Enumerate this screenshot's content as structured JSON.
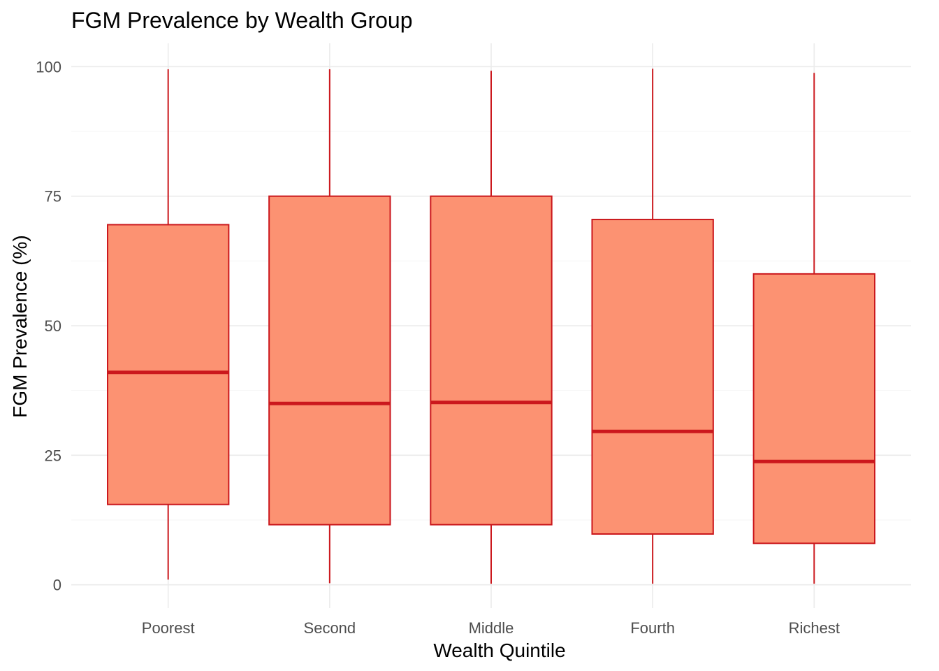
{
  "chart_data": {
    "type": "boxplot",
    "title": "FGM Prevalence by Wealth Group",
    "xlabel": "Wealth Quintile",
    "ylabel": "FGM Prevalence (%)",
    "ylim": [
      -4.5,
      104.5
    ],
    "yticks": [
      0,
      25,
      50,
      75,
      100
    ],
    "grid": true,
    "legend": "none",
    "colors": {
      "box_fill": "#FC9272",
      "box_stroke": "#CB181D",
      "median": "#CB181D"
    },
    "categories": [
      "Poorest",
      "Second",
      "Middle",
      "Fourth",
      "Richest"
    ],
    "boxes": [
      {
        "category": "Poorest",
        "min": 1,
        "q1": 15.5,
        "median": 41,
        "q3": 69.5,
        "max": 99.5
      },
      {
        "category": "Second",
        "min": 0.3,
        "q1": 11.6,
        "median": 35,
        "q3": 75,
        "max": 99.5
      },
      {
        "category": "Middle",
        "min": 0.2,
        "q1": 11.6,
        "median": 35.2,
        "q3": 75,
        "max": 99.2
      },
      {
        "category": "Fourth",
        "min": 0.2,
        "q1": 9.8,
        "median": 29.6,
        "q3": 70.5,
        "max": 99.6
      },
      {
        "category": "Richest",
        "min": 0.2,
        "q1": 8,
        "median": 23.8,
        "q3": 60,
        "max": 98.8
      }
    ]
  }
}
